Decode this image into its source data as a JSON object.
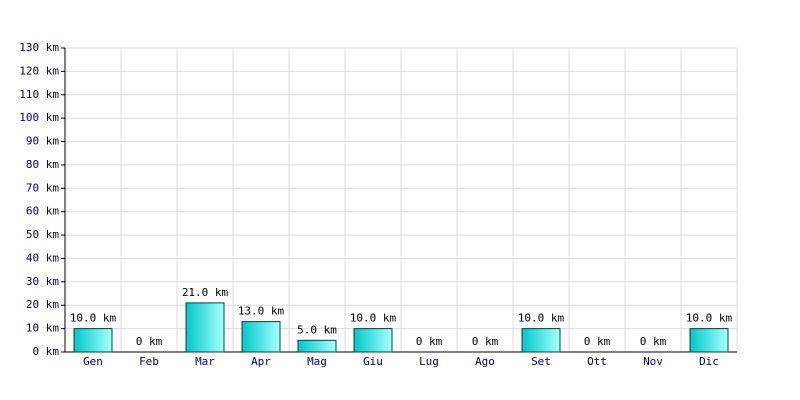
{
  "chart_data": {
    "type": "bar",
    "categories": [
      "Gen",
      "Feb",
      "Mar",
      "Apr",
      "Mag",
      "Giu",
      "Lug",
      "Ago",
      "Set",
      "Ott",
      "Nov",
      "Dic"
    ],
    "values": [
      10,
      0,
      21,
      13,
      5,
      10,
      0,
      0,
      10,
      0,
      0,
      10
    ],
    "value_labels": [
      "10.0 km",
      "0 km",
      "21.0 km",
      "13.0 km",
      "5.0 km",
      "10.0 km",
      "0 km",
      "0 km",
      "10.0 km",
      "0 km",
      "0 km",
      "10.0 km"
    ],
    "color": "#00c8c8",
    "ylim": [
      0,
      130
    ],
    "yticks": [
      {
        "value": 0,
        "label": "0 km"
      },
      {
        "value": 10,
        "label": "10 km"
      },
      {
        "value": 20,
        "label": "20 km"
      },
      {
        "value": 30,
        "label": "30 km"
      },
      {
        "value": 40,
        "label": "40 km"
      },
      {
        "value": 50,
        "label": "50 km"
      },
      {
        "value": 60,
        "label": "60 km"
      },
      {
        "value": 70,
        "label": "70 km"
      },
      {
        "value": 80,
        "label": "80 km"
      },
      {
        "value": 90,
        "label": "90 km"
      },
      {
        "value": 100,
        "label": "100 km"
      },
      {
        "value": 110,
        "label": "110 km"
      },
      {
        "value": 120,
        "label": "120 km"
      },
      {
        "value": 130,
        "label": "130 km"
      }
    ],
    "grid": true
  }
}
